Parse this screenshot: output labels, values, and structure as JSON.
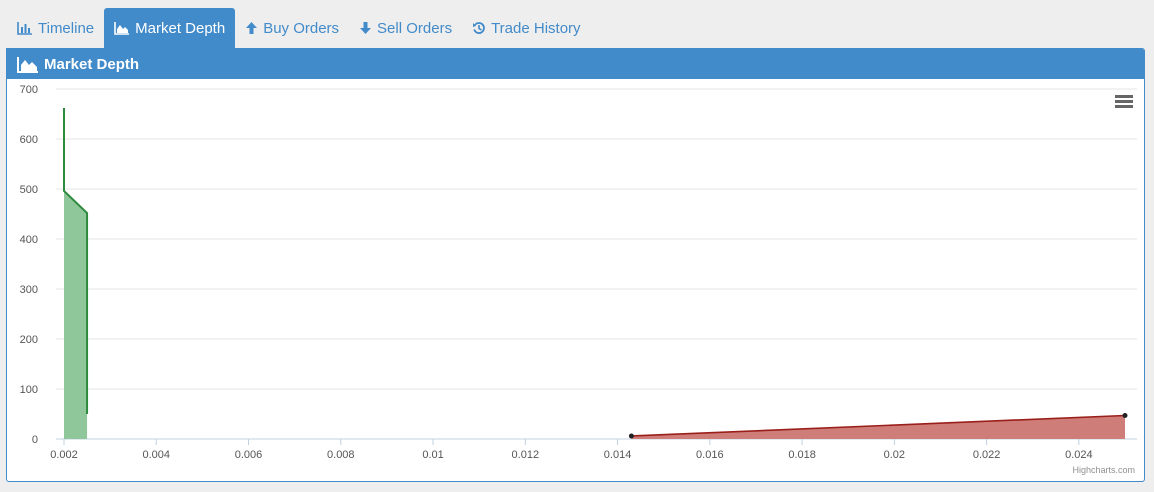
{
  "tabs": [
    {
      "label": "Timeline",
      "icon": "bar-chart-icon",
      "active": false
    },
    {
      "label": "Market Depth",
      "icon": "area-chart-icon",
      "active": true
    },
    {
      "label": "Buy Orders",
      "icon": "arrow-up-icon",
      "active": false
    },
    {
      "label": "Sell Orders",
      "icon": "arrow-down-icon",
      "active": false
    },
    {
      "label": "Trade History",
      "icon": "history-icon",
      "active": false
    }
  ],
  "panel": {
    "title": "Market Depth",
    "icon": "area-chart-icon"
  },
  "credits": "Highcharts.com",
  "colors": {
    "accent": "#428bca",
    "bid": "#2e8b3e",
    "bidFill": "#8fc79b",
    "ask": "#9a1f1a",
    "askFill": "#cf7d79"
  },
  "chart_data": {
    "type": "area",
    "title": "",
    "xlabel": "",
    "ylabel": "",
    "xlim": [
      0.002,
      0.025
    ],
    "ylim": [
      0,
      700
    ],
    "xticks": [
      "0.002",
      "0.004",
      "0.006",
      "0.008",
      "0.01",
      "0.012",
      "0.014",
      "0.016",
      "0.018",
      "0.02",
      "0.022",
      "0.024"
    ],
    "yticks": [
      "0",
      "100",
      "200",
      "300",
      "400",
      "500",
      "600",
      "700"
    ],
    "grid": true,
    "legend": "none",
    "series": [
      {
        "step": true,
        "points": [
          [
            0.002,
            662
          ],
          [
            0.002,
            496
          ],
          [
            0.0025,
            452
          ],
          [
            0.0025,
            50
          ]
        ]
      },
      {
        "step": false,
        "markers": true,
        "points": [
          [
            0.0143,
            6
          ],
          [
            0.025,
            47
          ]
        ]
      }
    ]
  }
}
